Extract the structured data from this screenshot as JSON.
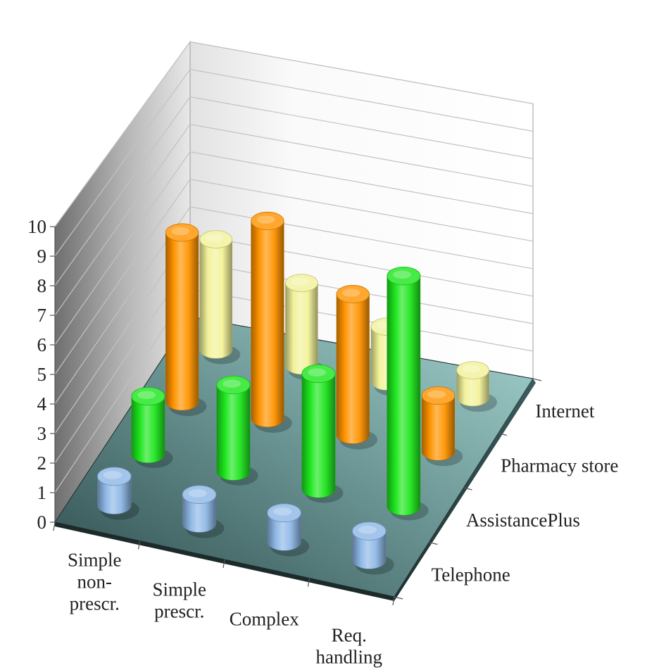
{
  "chart_data": {
    "type": "bar",
    "subtype": "3d-cylinder",
    "categories": [
      "Simple non-prescr.",
      "Simple prescr.",
      "Complex",
      "Req. handling"
    ],
    "category_label_lines": [
      [
        "Simple",
        "non-",
        "prescr."
      ],
      [
        "Simple",
        "prescr."
      ],
      [
        "Complex"
      ],
      [
        "Req.",
        "handling"
      ]
    ],
    "series": [
      {
        "name": "Telephone",
        "values": [
          1,
          1,
          1,
          1
        ],
        "color": "#8fb8e6"
      },
      {
        "name": "AssistancePlus",
        "values": [
          2,
          3,
          4,
          8
        ],
        "color": "#1ee61e"
      },
      {
        "name": "Pharmacy store",
        "values": [
          6,
          7,
          5,
          2
        ],
        "color": "#ff9400"
      },
      {
        "name": "Internet",
        "values": [
          4,
          3,
          2,
          1
        ],
        "color": "#f2f29a"
      }
    ],
    "y_ticks": [
      "0",
      "1",
      "2",
      "3",
      "4",
      "5",
      "6",
      "7",
      "8",
      "9",
      "10"
    ],
    "ylim": [
      0,
      10
    ],
    "grid": true,
    "legend": "none",
    "title": "",
    "xlabel": "",
    "ylabel": "",
    "colors": {
      "floor": "#6e9e9b",
      "wall": "#f5f5f5",
      "side_wall": "#9a9a9a",
      "grid": "#c2c2c2"
    }
  }
}
